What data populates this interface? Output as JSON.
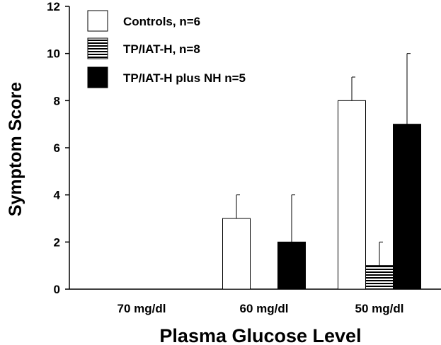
{
  "chart_data": {
    "type": "bar",
    "title": "",
    "xlabel": "Plasma Glucose Level",
    "ylabel": "Symptom Score",
    "categories": [
      "70 mg/dl",
      "60 mg/dl",
      "50 mg/dl"
    ],
    "ylim": [
      0,
      12
    ],
    "yticks": [
      0,
      2,
      4,
      6,
      8,
      10,
      12
    ],
    "grid": false,
    "legend_position": "top-left",
    "series": [
      {
        "name": "Controls, n=6",
        "fill": "white",
        "values": [
          0,
          3,
          8
        ],
        "error_upper": [
          0,
          1,
          1
        ]
      },
      {
        "name": "TP/IAT-H, n=8",
        "fill": "horizontal-stripes",
        "values": [
          0,
          0,
          1
        ],
        "error_upper": [
          0,
          0,
          1
        ]
      },
      {
        "name": "TP/IAT-H plus NH n=5",
        "fill": "black",
        "values": [
          0,
          2,
          7
        ],
        "error_upper": [
          0,
          2,
          3
        ]
      }
    ],
    "colors": {
      "axis": "#000000",
      "black_fill": "#000000",
      "white_fill": "#ffffff"
    }
  }
}
